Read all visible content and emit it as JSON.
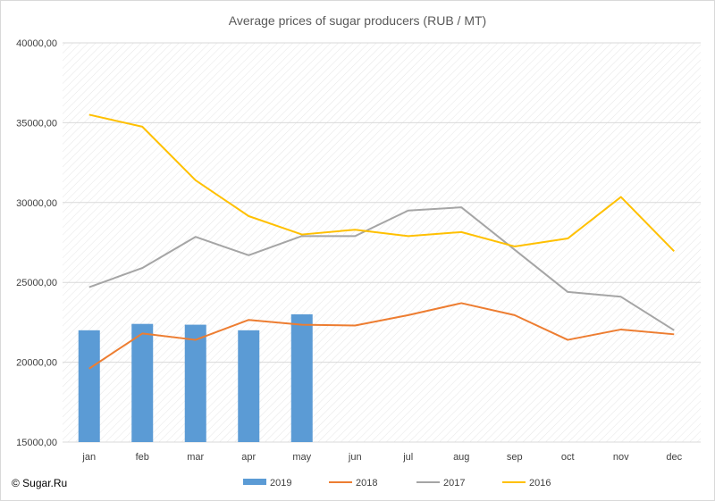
{
  "source_label": "© Sugar.Ru",
  "chart_data": {
    "type": "bar+line",
    "title": "Average prices of sugar producers (RUB / MT)",
    "categories": [
      "jan",
      "feb",
      "mar",
      "apr",
      "may",
      "jun",
      "jul",
      "aug",
      "sep",
      "oct",
      "nov",
      "dec"
    ],
    "ylim": [
      15000,
      40000
    ],
    "yticks": [
      15000,
      20000,
      25000,
      30000,
      35000,
      40000
    ],
    "ytick_labels": [
      "15000,00",
      "20000,00",
      "25000,00",
      "30000,00",
      "35000,00",
      "40000,00"
    ],
    "grid": true,
    "legend_position": "bottom",
    "series": [
      {
        "name": "2019",
        "type": "bar",
        "color": "#5b9bd5",
        "values": [
          22000,
          22400,
          22350,
          22000,
          23000,
          null,
          null,
          null,
          null,
          null,
          null,
          null
        ]
      },
      {
        "name": "2018",
        "type": "line",
        "color": "#ed7d31",
        "values": [
          19600,
          21800,
          21400,
          22650,
          22350,
          22300,
          22950,
          23700,
          22950,
          21400,
          22050,
          21750
        ]
      },
      {
        "name": "2017",
        "type": "line",
        "color": "#a5a5a5",
        "values": [
          24700,
          25900,
          27850,
          26700,
          27900,
          27900,
          29500,
          29700,
          27050,
          24400,
          24100,
          22000
        ]
      },
      {
        "name": "2016",
        "type": "line",
        "color": "#ffc000",
        "values": [
          35500,
          34750,
          31400,
          29150,
          28000,
          28300,
          27900,
          28150,
          27250,
          27750,
          30350,
          26950
        ]
      }
    ]
  }
}
